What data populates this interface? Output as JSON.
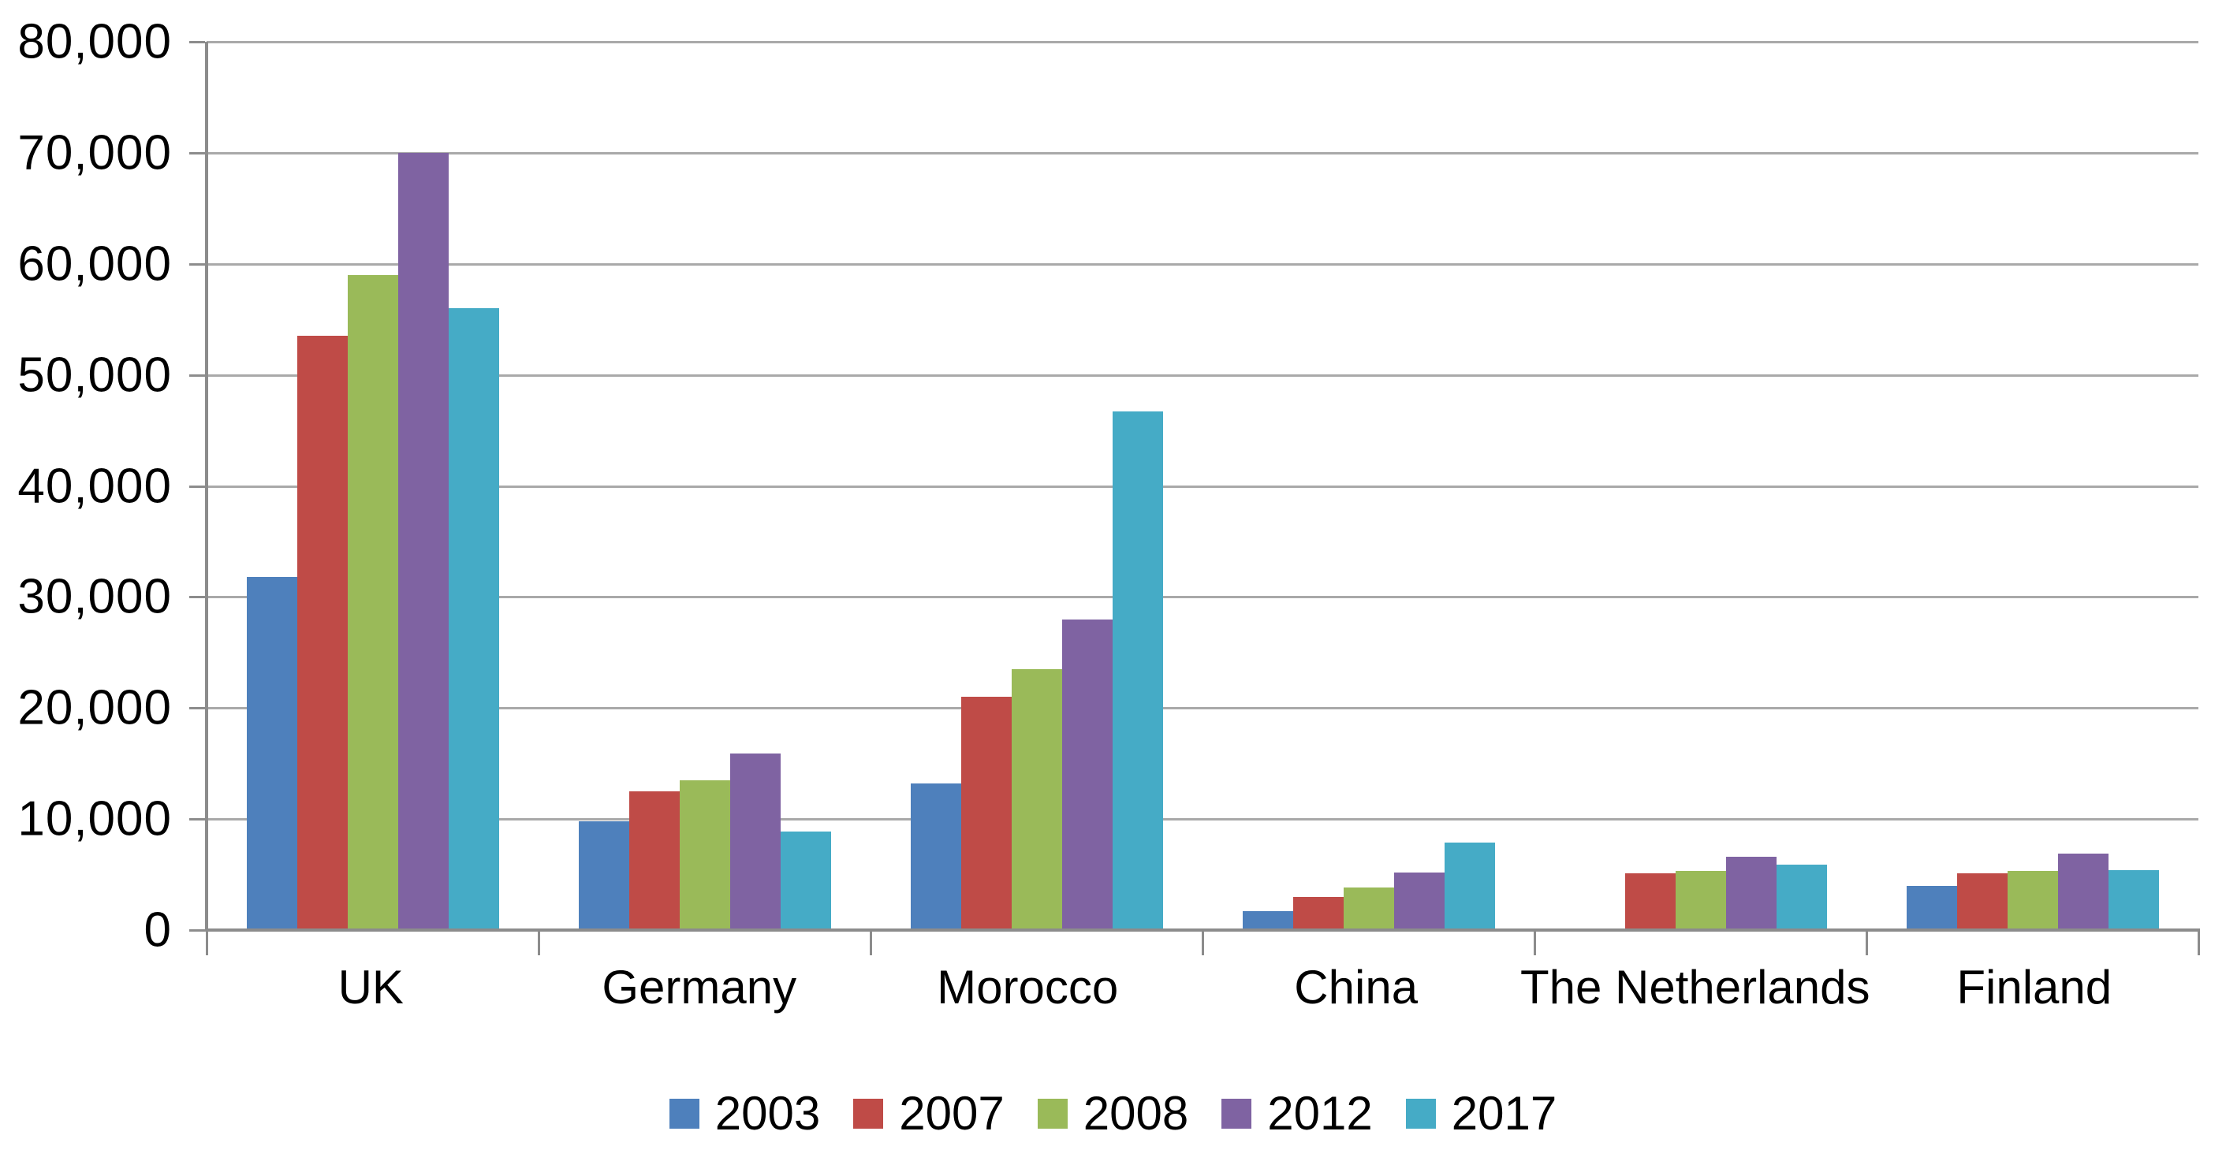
{
  "chart_data": {
    "type": "bar",
    "title": "",
    "xlabel": "",
    "ylabel": "",
    "categories": [
      "UK",
      "Germany",
      "Morocco",
      "China",
      "The Netherlands",
      "Finland"
    ],
    "series": [
      {
        "name": "2003",
        "color": "#4E80BC",
        "values": [
          31800,
          9800,
          13200,
          1700,
          0,
          4000
        ]
      },
      {
        "name": "2007",
        "color": "#BF4B47",
        "values": [
          53500,
          12500,
          21000,
          3000,
          5100,
          5100
        ]
      },
      {
        "name": "2008",
        "color": "#9ABA59",
        "values": [
          59000,
          13500,
          23500,
          3800,
          5300,
          5300
        ]
      },
      {
        "name": "2012",
        "color": "#7F63A2",
        "values": [
          70000,
          15900,
          28000,
          5200,
          6600,
          6900
        ]
      },
      {
        "name": "2017",
        "color": "#45ABC6",
        "values": [
          56000,
          8900,
          46700,
          7900,
          5900,
          5400
        ]
      }
    ],
    "y_axis": {
      "min": 0,
      "max": 80000,
      "tick_interval": 10000,
      "tick_labels": [
        "0",
        "10,000",
        "20,000",
        "30,000",
        "40,000",
        "50,000",
        "60,000",
        "70,000",
        "80,000"
      ]
    },
    "legend_position": "bottom",
    "grid": true
  },
  "colors": {
    "background": "#FFFFFF",
    "gridline": "#A9A9A9",
    "axis": "#8C8C8C",
    "text": "#000000"
  }
}
